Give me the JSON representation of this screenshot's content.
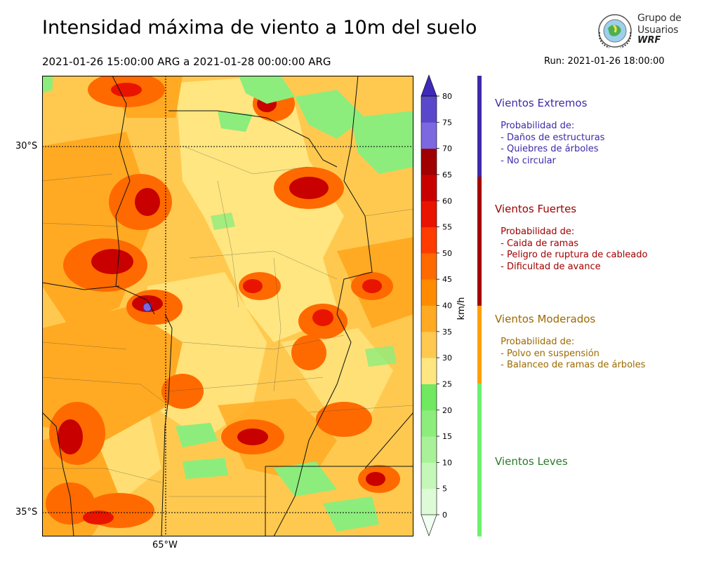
{
  "header": {
    "title": "Intensidad máxima de viento a 10m del suelo",
    "period": "2021-01-26 15:00:00 ARG  a  2021-01-28 00:00:00 ARG",
    "run": "Run: 2021-01-26 18:00:00"
  },
  "logo": {
    "line1": "Grupo de",
    "line2": "Usuarios",
    "line3": "WRF"
  },
  "map": {
    "lat_labels": [
      "30°S",
      "35°S"
    ],
    "lon_labels": [
      "65°W"
    ]
  },
  "colorbar": {
    "unit": "km/h",
    "ticks": [
      "0",
      "5",
      "10",
      "15",
      "20",
      "25",
      "30",
      "35",
      "40",
      "45",
      "50",
      "55",
      "60",
      "65",
      "70",
      "75",
      "80"
    ],
    "colors": [
      "#f0fff0",
      "#dcfbd6",
      "#c4f7b8",
      "#a8f198",
      "#8ced7c",
      "#70e860",
      "#ffe680",
      "#ffc94f",
      "#ffaa22",
      "#ff8c00",
      "#ff6a00",
      "#ff3c00",
      "#e81400",
      "#c80000",
      "#a00000",
      "#7c68e0",
      "#5a48cc",
      "#3e2ab8"
    ]
  },
  "categories": [
    {
      "title": "Vientos Extremos",
      "color": "#3d2aaa",
      "text_color": "#3d2aaa",
      "lines": [
        " Probabilidad de:",
        " - Daños de estructuras",
        " - Quiebres de árboles",
        " - No circular"
      ]
    },
    {
      "title": "Vientos Fuertes",
      "color": "#a50000",
      "text_color": "#a00000",
      "lines": [
        " Probabilidad de:",
        " - Caida de ramas",
        " - Peligro de ruptura de cableado",
        " - Dificultad de avance"
      ]
    },
    {
      "title": "Vientos Moderados",
      "color": "#ff9f00",
      "text_color": "#9c6a00",
      "lines": [
        " Probabilidad de:",
        " - Polvo en suspensión",
        " - Balanceo de ramas de árboles"
      ]
    },
    {
      "title": "Vientos Leves",
      "color": "#6ef06e",
      "text_color": "#2a7a2a",
      "lines": []
    }
  ]
}
